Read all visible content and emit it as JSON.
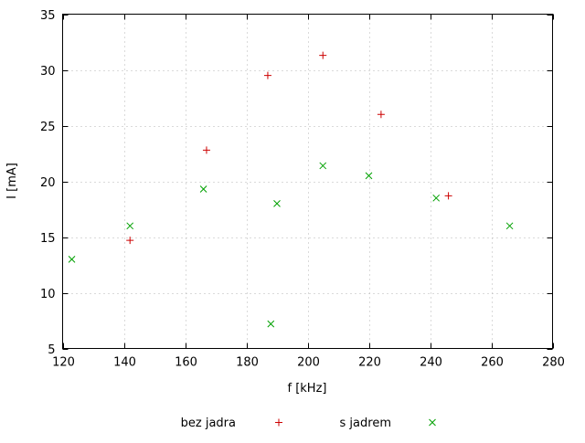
{
  "chart_data": {
    "type": "scatter",
    "title": "",
    "xlabel": "f [kHz]",
    "ylabel": "I [mA]",
    "xlim": [
      120,
      280
    ],
    "ylim": [
      5,
      35
    ],
    "xticks": [
      120,
      140,
      160,
      180,
      200,
      220,
      240,
      260,
      280
    ],
    "yticks": [
      5,
      10,
      15,
      20,
      25,
      30,
      35
    ],
    "grid": true,
    "grid_style": "dotted",
    "grid_color": "#b4b4b4",
    "border_color": "#000000",
    "legend_position": "bottom-center",
    "series": [
      {
        "name": "bez jadra",
        "marker": "plus",
        "color": "#cc0000",
        "points": [
          [
            142,
            14.7
          ],
          [
            167,
            22.8
          ],
          [
            187,
            29.5
          ],
          [
            205,
            31.3
          ],
          [
            224,
            26.0
          ],
          [
            246,
            18.7
          ]
        ]
      },
      {
        "name": "s jadrem",
        "marker": "cross",
        "color": "#00a000",
        "points": [
          [
            123,
            13.0
          ],
          [
            142,
            16.0
          ],
          [
            166,
            19.3
          ],
          [
            188,
            7.2
          ],
          [
            190,
            18.0
          ],
          [
            205,
            21.4
          ],
          [
            220,
            20.5
          ],
          [
            242,
            18.5
          ],
          [
            266,
            16.0
          ]
        ]
      }
    ]
  }
}
